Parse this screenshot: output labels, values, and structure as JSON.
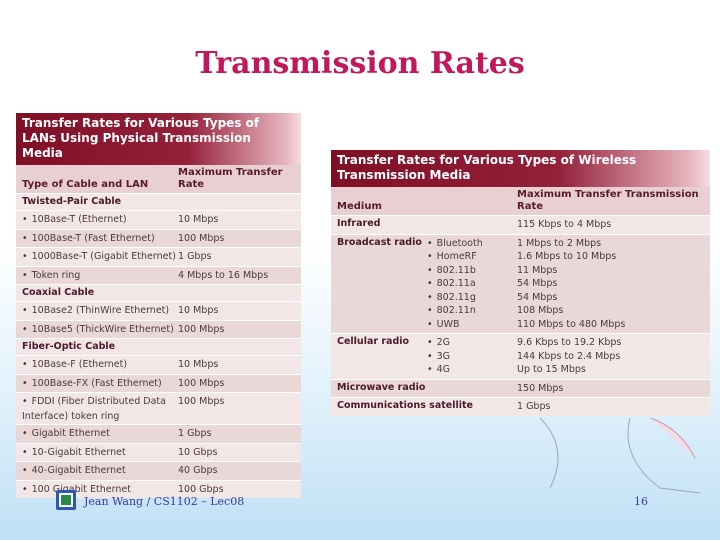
{
  "title": "Transmission Rates",
  "wired_table": {
    "heading": "Transfer Rates for Various Types of LANs Using Physical Transmission Media",
    "col1": "Type of Cable and LAN",
    "col2": "Maximum Transfer Rate",
    "groups": [
      {
        "category": "Twisted-Pair Cable",
        "rows": [
          {
            "name": "10Base-T (Ethernet)",
            "rate": "10 Mbps"
          },
          {
            "name": "100Base-T (Fast Ethernet)",
            "rate": "100 Mbps"
          },
          {
            "name": "1000Base-T (Gigabit Ethernet)",
            "rate": "1 Gbps"
          },
          {
            "name": "Token ring",
            "rate": "4 Mbps to 16 Mbps"
          }
        ]
      },
      {
        "category": "Coaxial Cable",
        "rows": [
          {
            "name": "10Base2 (ThinWire Ethernet)",
            "rate": "10 Mbps"
          },
          {
            "name": "10Base5 (ThickWire Ethernet)",
            "rate": "100 Mbps"
          }
        ]
      },
      {
        "category": "Fiber-Optic Cable",
        "rows": [
          {
            "name": "10Base-F (Ethernet)",
            "rate": "10 Mbps"
          },
          {
            "name": "100Base-FX (Fast Ethernet)",
            "rate": "100 Mbps"
          },
          {
            "name": "FDDI (Fiber Distributed Data Interface) token ring",
            "rate": "100 Mbps"
          },
          {
            "name": "Gigabit Ethernet",
            "rate": "1 Gbps"
          },
          {
            "name": "10-Gigabit Ethernet",
            "rate": "10 Gbps"
          },
          {
            "name": "40-Gigabit Ethernet",
            "rate": "40 Gbps"
          },
          {
            "name": "100 Gigabit Ethernet",
            "rate": "100 Gbps"
          }
        ]
      }
    ]
  },
  "wireless_table": {
    "heading": "Transfer Rates for Various Types of Wireless Transmission Media",
    "col1": "Medium",
    "col2": "Maximum Transfer Transmission Rate",
    "rows": [
      {
        "medium": "Infrared",
        "items": [
          {
            "sub": "",
            "rate": "115 Kbps to 4 Mbps"
          }
        ]
      },
      {
        "medium": "Broadcast radio",
        "items": [
          {
            "sub": "Bluetooth",
            "rate": "1 Mbps to 2 Mbps"
          },
          {
            "sub": "HomeRF",
            "rate": "1.6 Mbps to 10 Mbps"
          },
          {
            "sub": "802.11b",
            "rate": "11 Mbps"
          },
          {
            "sub": "802.11a",
            "rate": "54 Mbps"
          },
          {
            "sub": "802.11g",
            "rate": "54 Mbps"
          },
          {
            "sub": "802.11n",
            "rate": "108 Mbps"
          },
          {
            "sub": "UWB",
            "rate": "110 Mbps to 480 Mbps"
          }
        ]
      },
      {
        "medium": "Cellular radio",
        "items": [
          {
            "sub": "2G",
            "rate": "9.6 Kbps to 19.2 Kbps"
          },
          {
            "sub": "3G",
            "rate": "144 Kbps to 2.4 Mbps"
          },
          {
            "sub": "4G",
            "rate": "Up to 15 Mbps"
          }
        ]
      },
      {
        "medium": "Microwave radio",
        "items": [
          {
            "sub": "",
            "rate": "150 Mbps"
          }
        ]
      },
      {
        "medium": "Communications satellite",
        "items": [
          {
            "sub": "",
            "rate": "1 Gbps"
          }
        ]
      }
    ]
  },
  "footer": {
    "text": "Jean Wang / CS1102 – Lec08",
    "page": "16"
  },
  "colors": {
    "title": "#c2185b",
    "header_dark": "#7f0f24",
    "row_bg": "#f3e6e6",
    "footer_text": "#3a3aa0"
  }
}
